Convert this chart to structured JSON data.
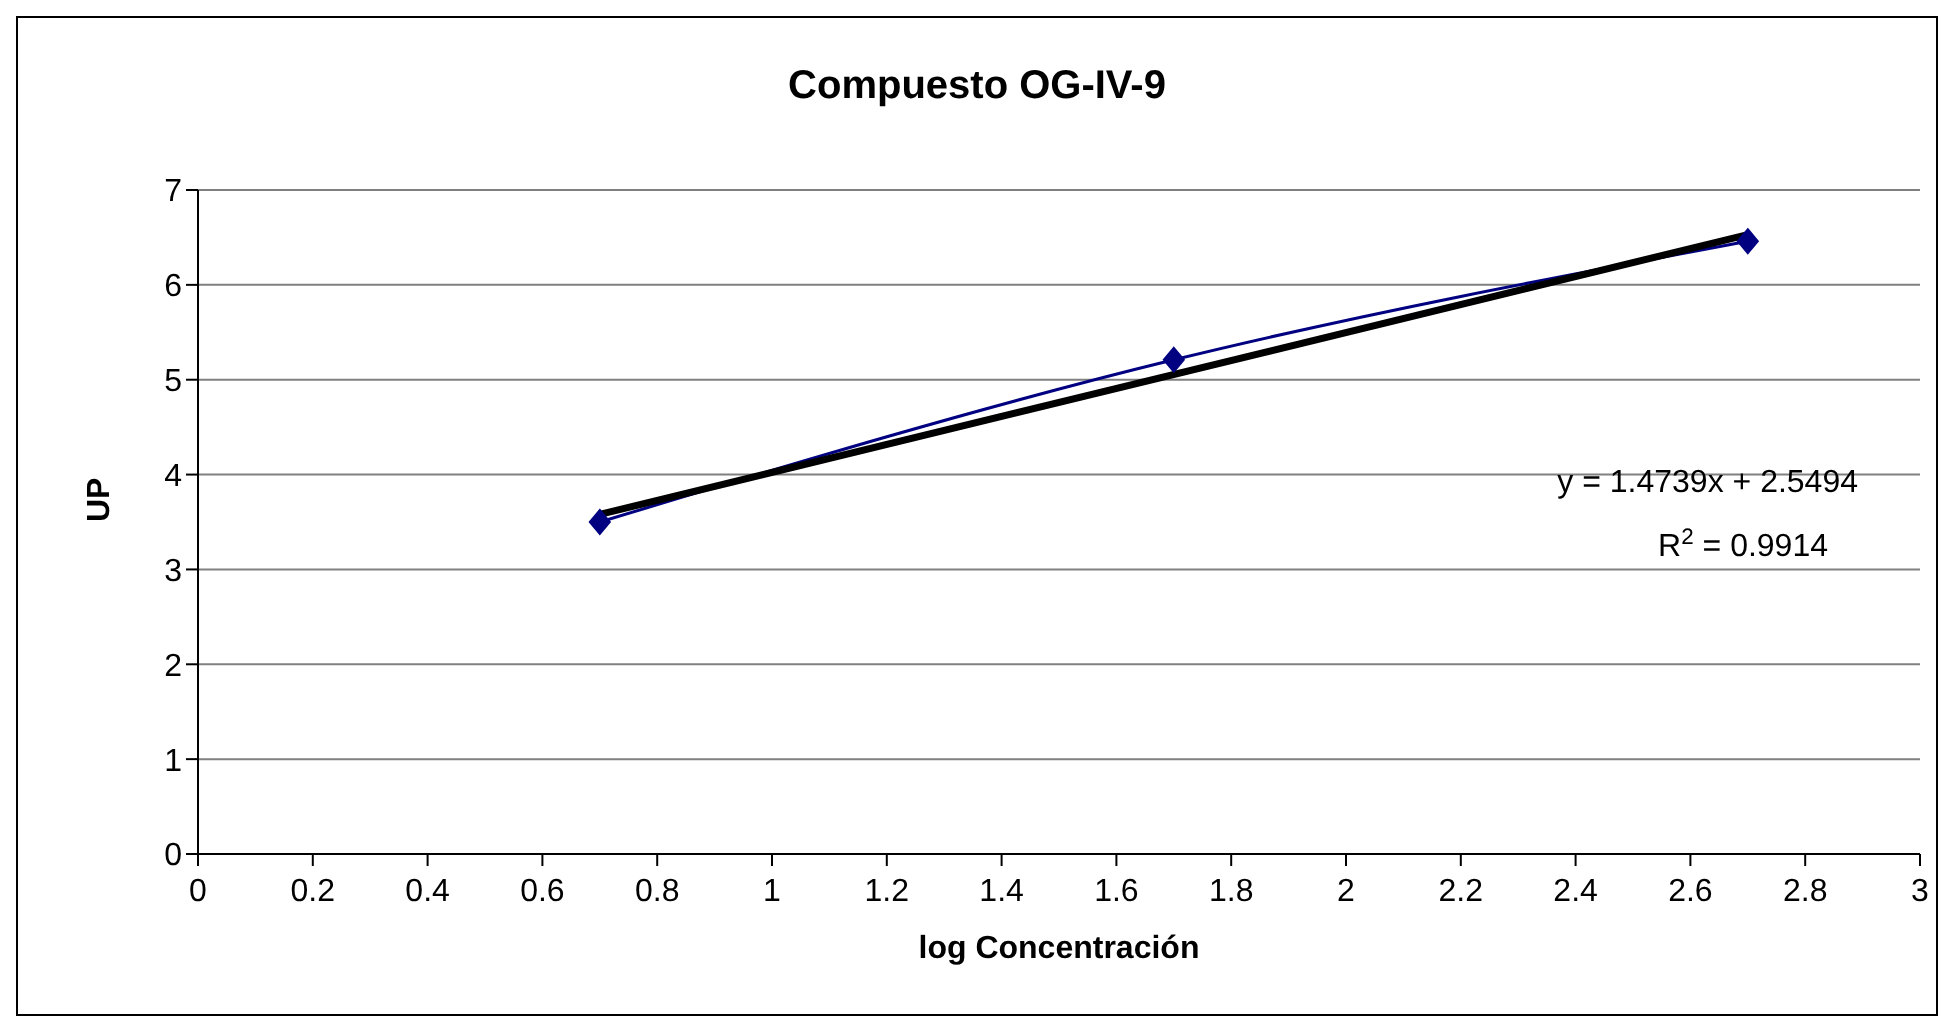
{
  "chart_data": {
    "type": "line",
    "title": "Compuesto OG-IV-9",
    "xlabel": "log Concentración",
    "ylabel": "UP",
    "xlim": [
      0,
      3
    ],
    "xticks": [
      0,
      0.2,
      0.4,
      0.6,
      0.8,
      1,
      1.2,
      1.4,
      1.6,
      1.8,
      2,
      2.2,
      2.4,
      2.6,
      2.8,
      3
    ],
    "ylim": [
      0,
      7
    ],
    "yticks": [
      0,
      1,
      2,
      3,
      4,
      5,
      6,
      7
    ],
    "grid": "y",
    "series": [
      {
        "color": "#000080",
        "x": [
          0.7,
          1.7,
          2.7
        ],
        "values": [
          3.5,
          5.21,
          6.46
        ],
        "marker": "diamond",
        "line_style": "solid"
      },
      {
        "type": "line",
        "color": "#000000",
        "x": [
          0.7,
          2.7
        ],
        "values": [
          3.58,
          6.53
        ],
        "marker": "none",
        "line_style": "solid"
      }
    ],
    "annotations": [
      "y = 1.4739x + 2.5494",
      "R$^{2}$ = 0.9914"
    ]
  }
}
